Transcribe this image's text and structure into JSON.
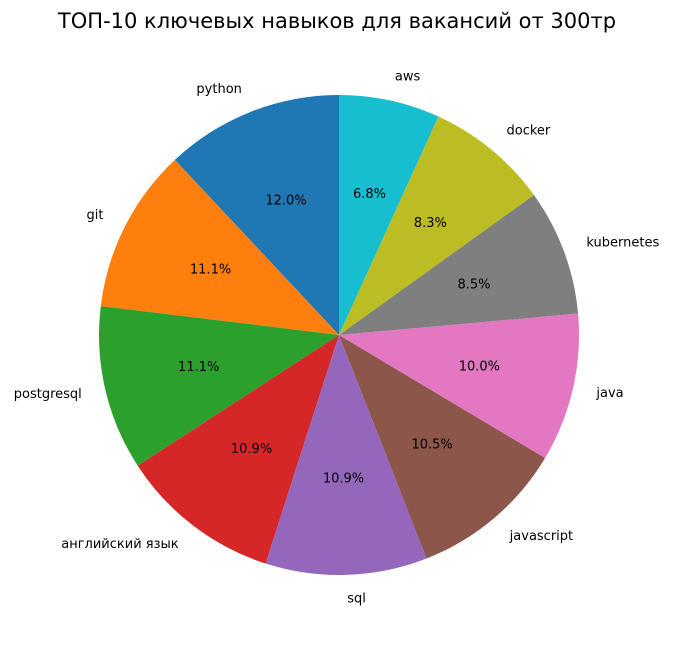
{
  "chart_data": {
    "type": "pie",
    "title": "ТОП-10 ключевых навыков для вакансий от 300тр",
    "start_angle_deg": 90,
    "direction": "counterclockwise",
    "slices": [
      {
        "label": "python",
        "value": 12.0,
        "pct_text": "12.0%",
        "color": "#1f77b4"
      },
      {
        "label": "git",
        "value": 11.1,
        "pct_text": "11.1%",
        "color": "#ff7f0e"
      },
      {
        "label": "postgresql",
        "value": 11.1,
        "pct_text": "11.1%",
        "color": "#2ca02c"
      },
      {
        "label": "английский язык",
        "value": 10.9,
        "pct_text": "10.9%",
        "color": "#d62728"
      },
      {
        "label": "sql",
        "value": 10.9,
        "pct_text": "10.9%",
        "color": "#9467bd"
      },
      {
        "label": "javascript",
        "value": 10.5,
        "pct_text": "10.5%",
        "color": "#8c564b"
      },
      {
        "label": "java",
        "value": 10.0,
        "pct_text": "10.0%",
        "color": "#e377c2"
      },
      {
        "label": "kubernetes",
        "value": 8.5,
        "pct_text": "8.5%",
        "color": "#7f7f7f"
      },
      {
        "label": "docker",
        "value": 8.3,
        "pct_text": "8.3%",
        "color": "#bcbd22"
      },
      {
        "label": "aws",
        "value": 6.8,
        "pct_text": "6.8%",
        "color": "#17becf"
      }
    ]
  }
}
